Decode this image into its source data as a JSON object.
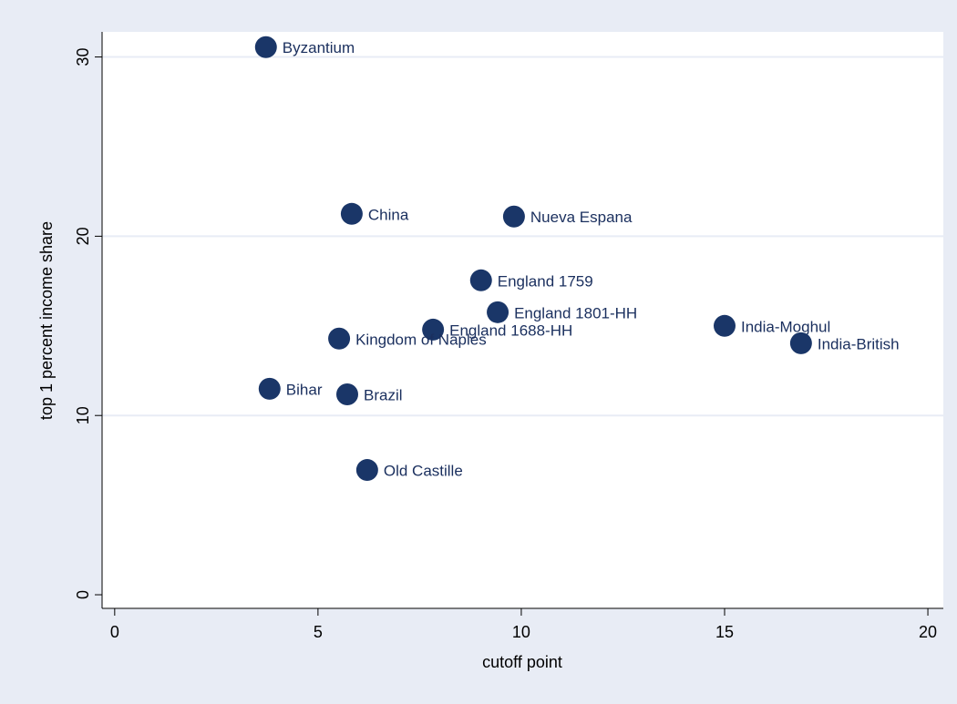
{
  "chart_data": {
    "type": "scatter",
    "x_label": "cutoff point",
    "y_label": "top 1 percent income share",
    "labels": [
      "Byzantium",
      "China",
      "Nueva Espana",
      "England 1759",
      "England 1801-HH",
      "England 1688-HH",
      "Kingdom of Naples",
      "India-Moghul",
      "India-British",
      "Bihar",
      "Brazil",
      "Old Castille"
    ],
    "x": [
      3.72,
      5.83,
      9.82,
      9.01,
      9.42,
      7.83,
      5.52,
      15.0,
      16.88,
      3.81,
      5.72,
      6.21
    ],
    "values": [
      30.55,
      21.25,
      21.1,
      17.54,
      15.76,
      14.79,
      14.29,
      15.0,
      14.03,
      11.49,
      11.18,
      6.96
    ],
    "color": "#1a3668",
    "xlim": [
      -0.31,
      20.38
    ],
    "ylim": [
      -0.76,
      31.4
    ],
    "xticks": [
      0,
      5,
      10,
      15,
      20
    ],
    "yticks": [
      0,
      10,
      20,
      30
    ],
    "grid": true
  }
}
